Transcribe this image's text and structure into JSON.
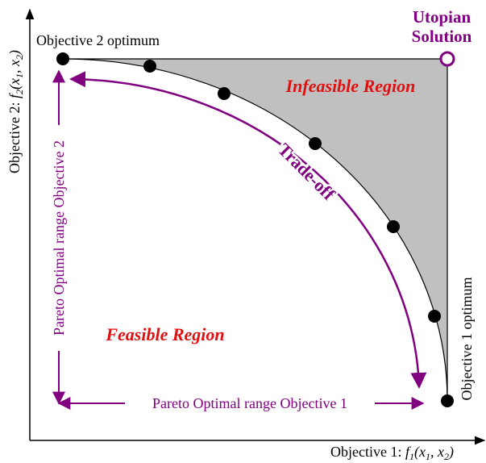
{
  "utopian": [
    "Utopian",
    "Solution"
  ],
  "obj2_optimum": "Objective 2 optimum",
  "obj1_optimum": "Objective 1 optimum",
  "infeasible": "Infeasible Region",
  "feasible": "Feasible Region",
  "tradeoff": "Trade-off",
  "pareto_range_2": "Pareto Optimal range Objective 2",
  "pareto_range_1": "Pareto Optimal range Objective 1",
  "x_axis_label": [
    "Objective 1: ",
    "f",
    "1",
    "(x",
    "1",
    ", x",
    "2",
    ")"
  ],
  "y_axis_label": [
    "Objective 2: ",
    "f",
    "2",
    "(x",
    "1",
    ", x",
    "2",
    ")"
  ]
}
